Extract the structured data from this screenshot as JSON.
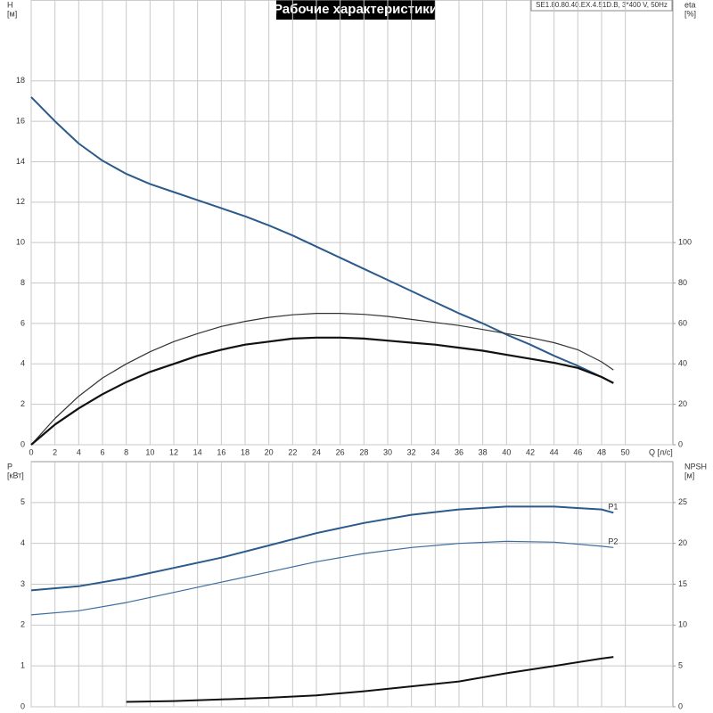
{
  "chart_data": [
    {
      "type": "line",
      "title": "Рабочие характеристики",
      "subtitle": "SE1.80.80.40.EX.4.51D.B, 3*400 V, 50Hz",
      "xlabel": "Q [л/с]",
      "ylabel": "H",
      "yunit": "[м]",
      "y2label": "eta",
      "y2unit": "[%]",
      "x": [
        0,
        2,
        4,
        6,
        8,
        10,
        12,
        14,
        16,
        18,
        20,
        22,
        24,
        26,
        28,
        30,
        32,
        34,
        36,
        38,
        40,
        42,
        44,
        46,
        48,
        49
      ],
      "xlim": [
        0,
        54
      ],
      "xticks": [
        0,
        2,
        4,
        6,
        8,
        10,
        12,
        14,
        16,
        18,
        20,
        22,
        24,
        26,
        28,
        30,
        32,
        34,
        36,
        38,
        40,
        42,
        44,
        46,
        48,
        50
      ],
      "ylim": [
        0,
        22
      ],
      "yticks": [
        0,
        2,
        4,
        6,
        8,
        10,
        12,
        14,
        16,
        18
      ],
      "y2lim": [
        0,
        220
      ],
      "y2ticks": [
        0,
        20,
        40,
        60,
        80,
        100
      ],
      "grid": true,
      "series": [
        {
          "color": "#2b5a8c",
          "width": 2,
          "values": [
            17.2,
            16,
            14.9,
            14.05,
            13.4,
            12.9,
            12.5,
            12.1,
            11.7,
            11.3,
            10.85,
            10.35,
            9.8,
            9.25,
            8.7,
            8.15,
            7.6,
            7.05,
            6.5,
            6.0,
            5.45,
            4.95,
            4.4,
            3.9,
            3.35,
            3.05
          ]
        },
        {
          "color": "#333333",
          "width": 1.2,
          "axis": "y2",
          "values": [
            0,
            13,
            24,
            33,
            40,
            46,
            51,
            55,
            58.5,
            61,
            63,
            64.3,
            65,
            65,
            64.5,
            63.5,
            62,
            60.5,
            59,
            57,
            55,
            53,
            50.5,
            47,
            41,
            37
          ]
        },
        {
          "color": "#111111",
          "width": 2.2,
          "axis": "y2",
          "values": [
            0,
            10,
            18,
            25,
            31,
            36,
            40,
            44,
            47,
            49.5,
            51,
            52.5,
            53,
            53,
            52.5,
            51.5,
            50.5,
            49.5,
            48,
            46.5,
            44.5,
            42.5,
            40.5,
            38,
            33.5,
            30.5
          ]
        }
      ]
    },
    {
      "type": "line",
      "ylabel": "P",
      "yunit": "[кВт]",
      "y2label": "NPSH",
      "y2unit": "[м]",
      "x": [
        0,
        4,
        8,
        12,
        16,
        20,
        24,
        28,
        32,
        36,
        40,
        44,
        48,
        49
      ],
      "xlim": [
        0,
        54
      ],
      "ylim": [
        0,
        6
      ],
      "yticks": [
        0,
        1,
        2,
        3,
        4,
        5
      ],
      "y2lim": [
        0,
        30
      ],
      "y2ticks": [
        0,
        5,
        10,
        15,
        20,
        25
      ],
      "grid": true,
      "series": [
        {
          "name": "P1",
          "color": "#2b5a8c",
          "width": 2,
          "values": [
            2.85,
            2.95,
            3.15,
            3.4,
            3.65,
            3.95,
            4.25,
            4.5,
            4.7,
            4.83,
            4.9,
            4.9,
            4.83,
            4.75
          ]
        },
        {
          "name": "P2",
          "color": "#3b6d9e",
          "width": 1.2,
          "values": [
            2.25,
            2.35,
            2.55,
            2.8,
            3.05,
            3.3,
            3.55,
            3.75,
            3.9,
            4.0,
            4.05,
            4.03,
            3.93,
            3.9
          ]
        },
        {
          "color": "#111111",
          "width": 2,
          "axis": "y2",
          "values": [
            null,
            null,
            0.6,
            0.7,
            0.9,
            1.1,
            1.4,
            1.9,
            2.5,
            3.1,
            4.1,
            5.0,
            5.9,
            6.1
          ]
        }
      ]
    }
  ]
}
